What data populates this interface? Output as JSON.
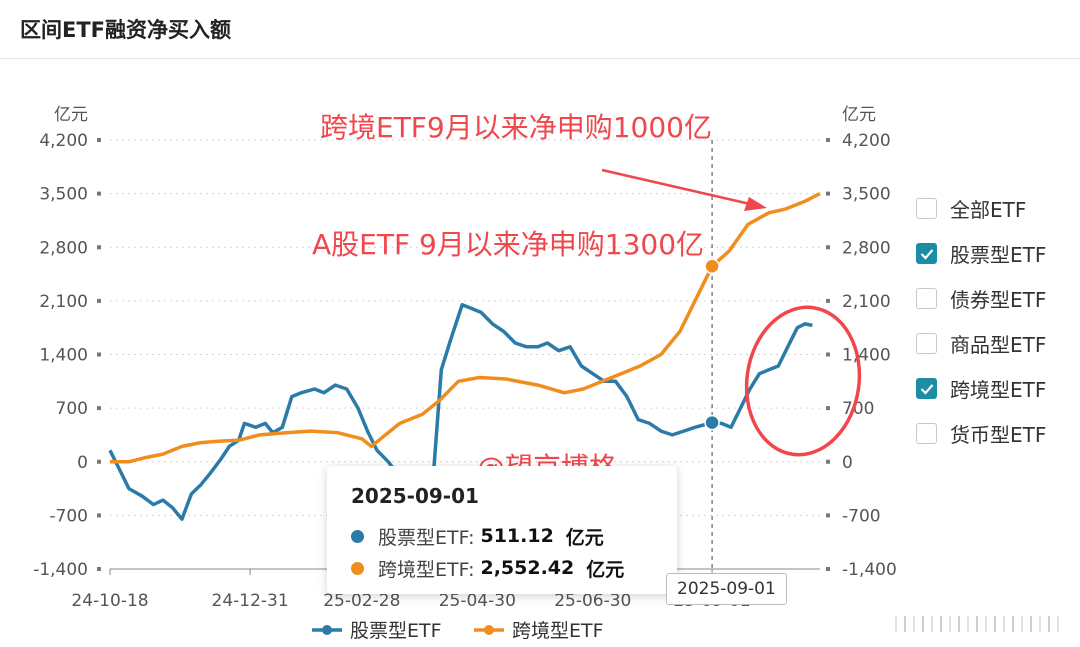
{
  "page": {
    "title": "区间ETF融资净买入额"
  },
  "chart_data": {
    "type": "line",
    "title": "区间ETF融资净买入额",
    "y_unit_left": "亿元",
    "y_unit_right": "亿元",
    "ylim": [
      -1400,
      4200
    ],
    "y_ticks": [
      "-1,400",
      "-700",
      "0",
      "700",
      "1,400",
      "2,100",
      "2,800",
      "3,500",
      "4,200"
    ],
    "x_tick_labels": [
      "24-10-18",
      "24-12-31",
      "25-02-28",
      "25-04-30",
      "25-06-30",
      "25-09-01"
    ],
    "x_range": [
      "2024-10-18",
      "2025-10-28"
    ],
    "series": [
      {
        "name": "股票型ETF",
        "color": "#2b7ba8",
        "points": [
          [
            "2024-10-18",
            150
          ],
          [
            "2024-10-22",
            -50
          ],
          [
            "2024-10-28",
            -350
          ],
          [
            "2024-11-04",
            -450
          ],
          [
            "2024-11-10",
            -560
          ],
          [
            "2024-11-15",
            -500
          ],
          [
            "2024-11-20",
            -600
          ],
          [
            "2024-11-25",
            -750
          ],
          [
            "2024-11-30",
            -420
          ],
          [
            "2024-12-05",
            -300
          ],
          [
            "2024-12-10",
            -150
          ],
          [
            "2024-12-16",
            50
          ],
          [
            "2024-12-20",
            200
          ],
          [
            "2024-12-25",
            280
          ],
          [
            "2024-12-28",
            500
          ],
          [
            "2025-01-03",
            450
          ],
          [
            "2025-01-08",
            500
          ],
          [
            "2025-01-12",
            380
          ],
          [
            "2025-01-17",
            450
          ],
          [
            "2025-01-22",
            850
          ],
          [
            "2025-01-27",
            900
          ],
          [
            "2025-02-03",
            950
          ],
          [
            "2025-02-08",
            900
          ],
          [
            "2025-02-14",
            1000
          ],
          [
            "2025-02-20",
            950
          ],
          [
            "2025-02-26",
            700
          ],
          [
            "2025-03-03",
            400
          ],
          [
            "2025-03-08",
            150
          ],
          [
            "2025-03-14",
            0
          ],
          [
            "2025-03-20",
            -200
          ],
          [
            "2025-04-07",
            -100
          ],
          [
            "2025-04-11",
            1200
          ],
          [
            "2025-04-16",
            1600
          ],
          [
            "2025-04-22",
            2050
          ],
          [
            "2025-04-27",
            2000
          ],
          [
            "2025-05-02",
            1950
          ],
          [
            "2025-05-08",
            1800
          ],
          [
            "2025-05-14",
            1700
          ],
          [
            "2025-05-20",
            1550
          ],
          [
            "2025-05-26",
            1500
          ],
          [
            "2025-06-01",
            1500
          ],
          [
            "2025-06-06",
            1550
          ],
          [
            "2025-06-12",
            1450
          ],
          [
            "2025-06-18",
            1500
          ],
          [
            "2025-06-24",
            1250
          ],
          [
            "2025-06-30",
            1150
          ],
          [
            "2025-07-06",
            1050
          ],
          [
            "2025-07-12",
            1050
          ],
          [
            "2025-07-18",
            850
          ],
          [
            "2025-07-24",
            550
          ],
          [
            "2025-07-30",
            500
          ],
          [
            "2025-08-05",
            400
          ],
          [
            "2025-08-11",
            350
          ],
          [
            "2025-08-17",
            400
          ],
          [
            "2025-08-23",
            450
          ],
          [
            "2025-09-01",
            511.12
          ],
          [
            "2025-09-06",
            500
          ],
          [
            "2025-09-11",
            450
          ],
          [
            "2025-09-16",
            700
          ],
          [
            "2025-09-21",
            950
          ],
          [
            "2025-09-26",
            1150
          ],
          [
            "2025-10-01",
            1200
          ],
          [
            "2025-10-06",
            1250
          ],
          [
            "2025-10-11",
            1500
          ],
          [
            "2025-10-16",
            1750
          ],
          [
            "2025-10-20",
            1800
          ],
          [
            "2025-10-24",
            1780
          ]
        ]
      },
      {
        "name": "跨境型ETF",
        "color": "#f18d1f",
        "points": [
          [
            "2024-10-18",
            0
          ],
          [
            "2024-10-28",
            0
          ],
          [
            "2024-11-05",
            50
          ],
          [
            "2024-11-15",
            100
          ],
          [
            "2024-11-25",
            200
          ],
          [
            "2024-12-05",
            250
          ],
          [
            "2024-12-15",
            270
          ],
          [
            "2024-12-25",
            280
          ],
          [
            "2025-01-05",
            350
          ],
          [
            "2025-01-20",
            380
          ],
          [
            "2025-02-01",
            400
          ],
          [
            "2025-02-15",
            380
          ],
          [
            "2025-02-28",
            300
          ],
          [
            "2025-03-05",
            200
          ],
          [
            "2025-03-10",
            300
          ],
          [
            "2025-03-20",
            500
          ],
          [
            "2025-04-01",
            620
          ],
          [
            "2025-04-10",
            800
          ],
          [
            "2025-04-20",
            1050
          ],
          [
            "2025-05-01",
            1100
          ],
          [
            "2025-05-15",
            1080
          ],
          [
            "2025-06-01",
            1000
          ],
          [
            "2025-06-15",
            900
          ],
          [
            "2025-06-25",
            950
          ],
          [
            "2025-07-05",
            1050
          ],
          [
            "2025-07-15",
            1150
          ],
          [
            "2025-07-25",
            1250
          ],
          [
            "2025-08-05",
            1400
          ],
          [
            "2025-08-15",
            1700
          ],
          [
            "2025-08-25",
            2200
          ],
          [
            "2025-09-01",
            2552.42
          ],
          [
            "2025-09-10",
            2750
          ],
          [
            "2025-09-20",
            3100
          ],
          [
            "2025-10-01",
            3250
          ],
          [
            "2025-10-10",
            3300
          ],
          [
            "2025-10-20",
            3400
          ],
          [
            "2025-10-28",
            3500
          ]
        ]
      }
    ],
    "crosshair_date": "2025-09-01",
    "bottom_legend": [
      "股票型ETF",
      "跨境型ETF"
    ],
    "side_legend": [
      {
        "label": "全部ETF",
        "checked": false
      },
      {
        "label": "股票型ETF",
        "checked": true
      },
      {
        "label": "债券型ETF",
        "checked": false
      },
      {
        "label": "商品型ETF",
        "checked": false
      },
      {
        "label": "跨境型ETF",
        "checked": true
      },
      {
        "label": "货币型ETF",
        "checked": false
      }
    ],
    "tooltip": {
      "date": "2025-09-01",
      "rows": [
        {
          "label": "股票型ETF:",
          "value": "511.12",
          "unit": "亿元",
          "color": "#2b7ba8"
        },
        {
          "label": "跨境型ETF:",
          "value": "2,552.42",
          "unit": "亿元",
          "color": "#f18d1f"
        }
      ]
    },
    "annotations": {
      "cross_border": "跨境ETF9月以来净申购1000亿",
      "a_share": "A股ETF 9月以来净申购1300亿",
      "watermark": "@望京博格",
      "color": "#f0474c"
    },
    "date_badge": "2025-09-01"
  }
}
